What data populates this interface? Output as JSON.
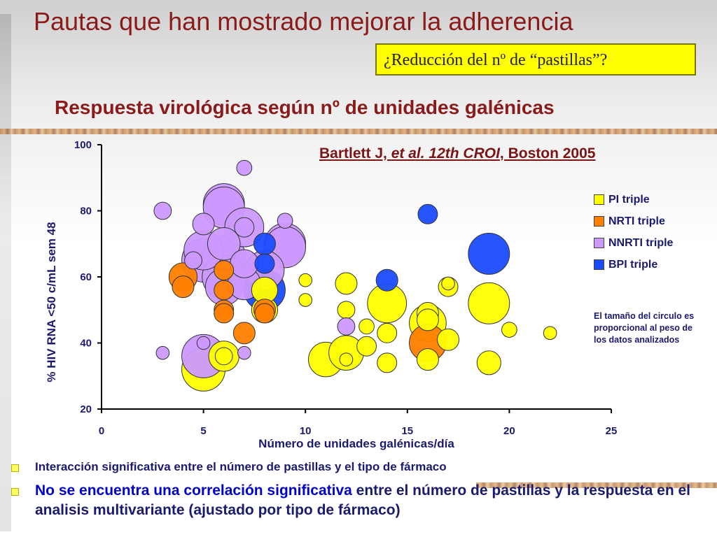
{
  "slide": {
    "title": "Pautas que han mostrado mejorar la adherencia",
    "callout": "¿Reducción del nº de “pastillas”?",
    "chart_title": "Respuesta virológica según nº de unidades galénicas",
    "citation": {
      "author": "Bartlett J, ",
      "etal": "et al.",
      "conf": " 12th CROI",
      "place": ", Boston 2005"
    },
    "note": "El tamaño del circulo es proporcional al peso de los datos analizados",
    "bullets": {
      "b1": "Interacción significativa entre el número de pastillas y el tipo de fármaco",
      "b2_highlight": "No se encuentra una correlación significativa",
      "b2_rest": " entre el número de pastillas y la respuesta en el analisis multivariante (ajustado por tipo de fármaco)"
    }
  },
  "colors": {
    "title": "#8b1a1a",
    "text": "#1a1a6e",
    "callout_bg": "#ffff00",
    "PI triple": "#ffff00",
    "NRTI triple": "#ff8000",
    "NNRTI triple": "#cc99ff",
    "BPI triple": "#1a4cff"
  },
  "chart_data": {
    "type": "scatter",
    "title": "Respuesta virológica según nº de unidades galénicas",
    "xlabel": "Número de unidades galénicas/día",
    "ylabel": "% HIV RNA <50 c/mL sem 48",
    "xlim": [
      0,
      25
    ],
    "ylim": [
      20,
      100
    ],
    "xticks": [
      "0",
      "5",
      "10",
      "15",
      "20",
      "25"
    ],
    "yticks": [
      "20",
      "40",
      "60",
      "80",
      "100"
    ],
    "legend": [
      "PI triple",
      "NRTI triple",
      "NNRTI triple",
      "BPI triple"
    ],
    "legend_position": "right",
    "grid": false,
    "bubble_note": "El tamaño del circulo es proporcional al peso de los datos analizados",
    "series": [
      {
        "name": "PI triple",
        "points": [
          {
            "x": 5,
            "y": 32,
            "size": 1.0
          },
          {
            "x": 6,
            "y": 36,
            "size": 0.7
          },
          {
            "x": 6,
            "y": 36,
            "size": 0.4
          },
          {
            "x": 8,
            "y": 50,
            "size": 0.6
          },
          {
            "x": 8,
            "y": 56,
            "size": 0.6
          },
          {
            "x": 10,
            "y": 59,
            "size": 0.3
          },
          {
            "x": 10,
            "y": 53,
            "size": 0.3
          },
          {
            "x": 11,
            "y": 35,
            "size": 0.8
          },
          {
            "x": 12,
            "y": 37,
            "size": 0.8
          },
          {
            "x": 12,
            "y": 58,
            "size": 0.5
          },
          {
            "x": 12,
            "y": 50,
            "size": 0.4
          },
          {
            "x": 12,
            "y": 35,
            "size": 0.3
          },
          {
            "x": 13,
            "y": 45,
            "size": 0.35
          },
          {
            "x": 13,
            "y": 39,
            "size": 0.45
          },
          {
            "x": 14,
            "y": 52,
            "size": 0.9
          },
          {
            "x": 14,
            "y": 43,
            "size": 0.45
          },
          {
            "x": 14,
            "y": 34,
            "size": 0.45
          },
          {
            "x": 16,
            "y": 49,
            "size": 0.5
          },
          {
            "x": 16,
            "y": 46,
            "size": 0.85
          },
          {
            "x": 16,
            "y": 35,
            "size": 0.5
          },
          {
            "x": 16,
            "y": 47,
            "size": 0.5
          },
          {
            "x": 17,
            "y": 41,
            "size": 0.5
          },
          {
            "x": 17,
            "y": 57,
            "size": 0.45
          },
          {
            "x": 17,
            "y": 58,
            "size": 0.3
          },
          {
            "x": 19,
            "y": 52,
            "size": 0.95
          },
          {
            "x": 19,
            "y": 34,
            "size": 0.55
          },
          {
            "x": 20,
            "y": 44,
            "size": 0.35
          },
          {
            "x": 22,
            "y": 43,
            "size": 0.3
          }
        ]
      },
      {
        "name": "NRTI triple",
        "points": [
          {
            "x": 4,
            "y": 60,
            "size": 0.65
          },
          {
            "x": 4,
            "y": 57,
            "size": 0.5
          },
          {
            "x": 6,
            "y": 62,
            "size": 0.45
          },
          {
            "x": 6,
            "y": 56,
            "size": 0.45
          },
          {
            "x": 6,
            "y": 50,
            "size": 0.45
          },
          {
            "x": 6,
            "y": 49,
            "size": 0.45
          },
          {
            "x": 7,
            "y": 43,
            "size": 0.5
          },
          {
            "x": 8,
            "y": 50,
            "size": 0.5
          },
          {
            "x": 8,
            "y": 49,
            "size": 0.45
          },
          {
            "x": 16,
            "y": 40,
            "size": 0.85
          }
        ]
      },
      {
        "name": "NNRTI triple",
        "points": [
          {
            "x": 3,
            "y": 80,
            "size": 0.4
          },
          {
            "x": 3,
            "y": 37,
            "size": 0.3
          },
          {
            "x": 5,
            "y": 36,
            "size": 1.0
          },
          {
            "x": 5,
            "y": 40,
            "size": 0.3
          },
          {
            "x": 5,
            "y": 76,
            "size": 0.5
          },
          {
            "x": 5,
            "y": 68,
            "size": 0.9
          },
          {
            "x": 5,
            "y": 65,
            "size": 1.0
          },
          {
            "x": 4.5,
            "y": 65,
            "size": 0.4
          },
          {
            "x": 6,
            "y": 82,
            "size": 0.95
          },
          {
            "x": 6,
            "y": 81,
            "size": 0.95
          },
          {
            "x": 6,
            "y": 70,
            "size": 0.75
          },
          {
            "x": 6,
            "y": 66,
            "size": 1.0
          },
          {
            "x": 6,
            "y": 60,
            "size": 1.0
          },
          {
            "x": 6,
            "y": 57,
            "size": 0.85
          },
          {
            "x": 7,
            "y": 93,
            "size": 0.35
          },
          {
            "x": 7,
            "y": 75,
            "size": 0.9
          },
          {
            "x": 7,
            "y": 75,
            "size": 0.45
          },
          {
            "x": 7,
            "y": 64,
            "size": 0.65
          },
          {
            "x": 7,
            "y": 58,
            "size": 0.75
          },
          {
            "x": 7,
            "y": 37,
            "size": 0.3
          },
          {
            "x": 8,
            "y": 62,
            "size": 0.9
          },
          {
            "x": 9,
            "y": 77,
            "size": 0.35
          },
          {
            "x": 9,
            "y": 70,
            "size": 0.95
          },
          {
            "x": 9,
            "y": 69,
            "size": 0.95
          },
          {
            "x": 12,
            "y": 45,
            "size": 0.4
          }
        ]
      },
      {
        "name": "BPI triple",
        "points": [
          {
            "x": 8,
            "y": 70,
            "size": 0.5
          },
          {
            "x": 8,
            "y": 64,
            "size": 0.45
          },
          {
            "x": 8,
            "y": 56,
            "size": 0.95
          },
          {
            "x": 14,
            "y": 59,
            "size": 0.5
          },
          {
            "x": 16,
            "y": 79,
            "size": 0.45
          },
          {
            "x": 19,
            "y": 67,
            "size": 0.95
          }
        ]
      }
    ]
  }
}
